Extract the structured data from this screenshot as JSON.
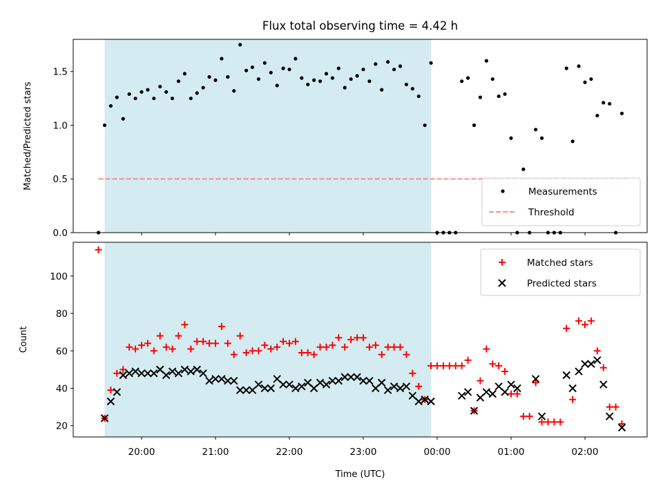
{
  "chart_data": [
    {
      "type": "scatter",
      "title": "Flux total observing time = 4.42 h",
      "ylabel": "Matched/Predicted stars",
      "xlabel": "",
      "ylim": [
        0,
        1.8
      ],
      "yticks": [
        "0.0",
        "0.5",
        "1.0",
        "1.5"
      ],
      "legend": {
        "placement": "lower-right",
        "entries": [
          "Measurements",
          "Threshold"
        ]
      },
      "threshold": {
        "name": "Threshold",
        "value": 0.5,
        "x_range": [
          "19:25",
          "02:35"
        ],
        "color": "#ff7f7f",
        "style": "dashed"
      },
      "observing_window": {
        "start": "19:30",
        "end": "23:55",
        "color": "#d4ebf1"
      },
      "series": [
        {
          "name": "Measurements",
          "marker": "dot",
          "color": "#000000",
          "points": [
            [
              "19:25",
              0.0
            ],
            [
              "19:30",
              1.0
            ],
            [
              "19:35",
              1.18
            ],
            [
              "19:40",
              1.26
            ],
            [
              "19:45",
              1.06
            ],
            [
              "19:50",
              1.29
            ],
            [
              "19:55",
              1.25
            ],
            [
              "20:00",
              1.31
            ],
            [
              "20:05",
              1.33
            ],
            [
              "20:10",
              1.25
            ],
            [
              "20:15",
              1.36
            ],
            [
              "20:20",
              1.31
            ],
            [
              "20:25",
              1.25
            ],
            [
              "20:30",
              1.41
            ],
            [
              "20:35",
              1.48
            ],
            [
              "20:40",
              1.25
            ],
            [
              "20:45",
              1.3
            ],
            [
              "20:50",
              1.35
            ],
            [
              "20:55",
              1.45
            ],
            [
              "21:00",
              1.42
            ],
            [
              "21:05",
              1.62
            ],
            [
              "21:10",
              1.45
            ],
            [
              "21:15",
              1.32
            ],
            [
              "21:20",
              1.75
            ],
            [
              "21:25",
              1.51
            ],
            [
              "21:30",
              1.54
            ],
            [
              "21:35",
              1.43
            ],
            [
              "21:40",
              1.58
            ],
            [
              "21:45",
              1.49
            ],
            [
              "21:50",
              1.37
            ],
            [
              "21:55",
              1.53
            ],
            [
              "22:00",
              1.52
            ],
            [
              "22:05",
              1.62
            ],
            [
              "22:10",
              1.44
            ],
            [
              "22:15",
              1.38
            ],
            [
              "22:20",
              1.42
            ],
            [
              "22:25",
              1.41
            ],
            [
              "22:30",
              1.48
            ],
            [
              "22:35",
              1.44
            ],
            [
              "22:40",
              1.53
            ],
            [
              "22:45",
              1.35
            ],
            [
              "22:50",
              1.43
            ],
            [
              "22:55",
              1.46
            ],
            [
              "23:00",
              1.52
            ],
            [
              "23:05",
              1.41
            ],
            [
              "23:10",
              1.57
            ],
            [
              "23:15",
              1.33
            ],
            [
              "23:20",
              1.59
            ],
            [
              "23:25",
              1.52
            ],
            [
              "23:30",
              1.55
            ],
            [
              "23:35",
              1.38
            ],
            [
              "23:40",
              1.34
            ],
            [
              "23:45",
              1.27
            ],
            [
              "23:50",
              1.0
            ],
            [
              "23:55",
              1.58
            ],
            [
              "00:00",
              0.0
            ],
            [
              "00:05",
              0.0
            ],
            [
              "00:10",
              0.0
            ],
            [
              "00:15",
              0.0
            ],
            [
              "00:20",
              1.41
            ],
            [
              "00:25",
              1.44
            ],
            [
              "00:30",
              1.0
            ],
            [
              "00:35",
              1.26
            ],
            [
              "00:40",
              1.6
            ],
            [
              "00:45",
              1.43
            ],
            [
              "00:50",
              1.27
            ],
            [
              "00:55",
              1.29
            ],
            [
              "01:00",
              0.88
            ],
            [
              "01:05",
              0.0
            ],
            [
              "01:10",
              0.59
            ],
            [
              "01:15",
              0.0
            ],
            [
              "01:20",
              0.96
            ],
            [
              "01:25",
              0.88
            ],
            [
              "01:30",
              0.0
            ],
            [
              "01:35",
              0.0
            ],
            [
              "01:40",
              0.0
            ],
            [
              "01:45",
              1.53
            ],
            [
              "01:50",
              0.85
            ],
            [
              "01:55",
              1.55
            ],
            [
              "02:00",
              1.4
            ],
            [
              "02:05",
              1.43
            ],
            [
              "02:10",
              1.09
            ],
            [
              "02:15",
              1.21
            ],
            [
              "02:20",
              1.2
            ],
            [
              "02:25",
              0.0
            ],
            [
              "02:30",
              1.11
            ]
          ]
        }
      ]
    },
    {
      "type": "scatter",
      "title": "",
      "ylabel": "Count",
      "xlabel": "Time (UTC)",
      "ylim": [
        14,
        118
      ],
      "yticks": [
        "20",
        "40",
        "60",
        "80",
        "100"
      ],
      "xticks": [
        "20:00",
        "21:00",
        "22:00",
        "23:00",
        "00:00",
        "01:00",
        "02:00"
      ],
      "legend": {
        "placement": "top-right",
        "entries": [
          "Matched stars",
          "Predicted stars"
        ]
      },
      "observing_window": {
        "start": "19:30",
        "end": "23:55",
        "color": "#d4ebf1"
      },
      "series": [
        {
          "name": "Matched stars",
          "marker": "plus",
          "color": "#ff0000",
          "points": [
            [
              "19:25",
              114
            ],
            [
              "19:30",
              24
            ],
            [
              "19:35",
              39
            ],
            [
              "19:40",
              48
            ],
            [
              "19:45",
              50
            ],
            [
              "19:50",
              62
            ],
            [
              "19:55",
              61
            ],
            [
              "20:00",
              63
            ],
            [
              "20:05",
              64
            ],
            [
              "20:10",
              60
            ],
            [
              "20:15",
              68
            ],
            [
              "20:20",
              62
            ],
            [
              "20:25",
              61
            ],
            [
              "20:30",
              68
            ],
            [
              "20:35",
              74
            ],
            [
              "20:40",
              61
            ],
            [
              "20:45",
              65
            ],
            [
              "20:50",
              65
            ],
            [
              "20:55",
              64
            ],
            [
              "21:00",
              64
            ],
            [
              "21:05",
              73
            ],
            [
              "21:10",
              64
            ],
            [
              "21:15",
              58
            ],
            [
              "21:20",
              68
            ],
            [
              "21:25",
              59
            ],
            [
              "21:30",
              60
            ],
            [
              "21:35",
              60
            ],
            [
              "21:40",
              63
            ],
            [
              "21:45",
              61
            ],
            [
              "21:50",
              62
            ],
            [
              "21:55",
              65
            ],
            [
              "22:00",
              64
            ],
            [
              "22:05",
              65
            ],
            [
              "22:10",
              59
            ],
            [
              "22:15",
              59
            ],
            [
              "22:20",
              58
            ],
            [
              "22:25",
              62
            ],
            [
              "22:30",
              62
            ],
            [
              "22:35",
              63
            ],
            [
              "22:40",
              67
            ],
            [
              "22:45",
              62
            ],
            [
              "22:50",
              66
            ],
            [
              "22:55",
              67
            ],
            [
              "23:00",
              67
            ],
            [
              "23:05",
              62
            ],
            [
              "23:10",
              63
            ],
            [
              "23:15",
              58
            ],
            [
              "23:20",
              62
            ],
            [
              "23:25",
              62
            ],
            [
              "23:30",
              62
            ],
            [
              "23:35",
              58
            ],
            [
              "23:40",
              48
            ],
            [
              "23:45",
              41
            ],
            [
              "23:50",
              34
            ],
            [
              "23:55",
              52
            ],
            [
              "00:00",
              52
            ],
            [
              "00:05",
              52
            ],
            [
              "00:10",
              52
            ],
            [
              "00:15",
              52
            ],
            [
              "00:20",
              52
            ],
            [
              "00:25",
              55
            ],
            [
              "00:30",
              28
            ],
            [
              "00:35",
              44
            ],
            [
              "00:40",
              61
            ],
            [
              "00:45",
              53
            ],
            [
              "00:50",
              52
            ],
            [
              "00:55",
              49
            ],
            [
              "01:00",
              37
            ],
            [
              "01:05",
              37
            ],
            [
              "01:10",
              25
            ],
            [
              "01:15",
              25
            ],
            [
              "01:20",
              43
            ],
            [
              "01:25",
              22
            ],
            [
              "01:30",
              22
            ],
            [
              "01:35",
              22
            ],
            [
              "01:40",
              22
            ],
            [
              "01:45",
              72
            ],
            [
              "01:50",
              34
            ],
            [
              "01:55",
              76
            ],
            [
              "02:00",
              74
            ],
            [
              "02:05",
              76
            ],
            [
              "02:10",
              60
            ],
            [
              "02:15",
              51
            ],
            [
              "02:20",
              30
            ],
            [
              "02:25",
              30
            ],
            [
              "02:30",
              21
            ]
          ]
        },
        {
          "name": "Predicted stars",
          "marker": "x",
          "color": "#000000",
          "points": [
            [
              "19:30",
              24
            ],
            [
              "19:35",
              33
            ],
            [
              "19:40",
              38
            ],
            [
              "19:45",
              47
            ],
            [
              "19:50",
              48
            ],
            [
              "19:55",
              49
            ],
            [
              "20:00",
              48
            ],
            [
              "20:05",
              48
            ],
            [
              "20:10",
              48
            ],
            [
              "20:15",
              50
            ],
            [
              "20:20",
              47
            ],
            [
              "20:25",
              49
            ],
            [
              "20:30",
              48
            ],
            [
              "20:35",
              50
            ],
            [
              "20:40",
              49
            ],
            [
              "20:45",
              50
            ],
            [
              "20:50",
              48
            ],
            [
              "20:55",
              44
            ],
            [
              "21:00",
              45
            ],
            [
              "21:05",
              45
            ],
            [
              "21:10",
              44
            ],
            [
              "21:15",
              44
            ],
            [
              "21:20",
              39
            ],
            [
              "21:25",
              39
            ],
            [
              "21:30",
              39
            ],
            [
              "21:35",
              42
            ],
            [
              "21:40",
              40
            ],
            [
              "21:45",
              40
            ],
            [
              "21:50",
              45
            ],
            [
              "21:55",
              42
            ],
            [
              "22:00",
              42
            ],
            [
              "22:05",
              40
            ],
            [
              "22:10",
              41
            ],
            [
              "22:15",
              43
            ],
            [
              "22:20",
              40
            ],
            [
              "22:25",
              43
            ],
            [
              "22:30",
              42
            ],
            [
              "22:35",
              44
            ],
            [
              "22:40",
              44
            ],
            [
              "22:45",
              46
            ],
            [
              "22:50",
              46
            ],
            [
              "22:55",
              46
            ],
            [
              "23:00",
              44
            ],
            [
              "23:05",
              44
            ],
            [
              "23:10",
              40
            ],
            [
              "23:15",
              43
            ],
            [
              "23:20",
              39
            ],
            [
              "23:25",
              41
            ],
            [
              "23:30",
              40
            ],
            [
              "23:35",
              41
            ],
            [
              "23:40",
              36
            ],
            [
              "23:45",
              33
            ],
            [
              "23:50",
              34
            ],
            [
              "23:55",
              33
            ],
            [
              "00:20",
              36
            ],
            [
              "00:25",
              38
            ],
            [
              "00:30",
              28
            ],
            [
              "00:35",
              35
            ],
            [
              "00:40",
              38
            ],
            [
              "00:45",
              37
            ],
            [
              "00:50",
              41
            ],
            [
              "00:55",
              38
            ],
            [
              "01:00",
              42
            ],
            [
              "01:05",
              40
            ],
            [
              "01:20",
              45
            ],
            [
              "01:25",
              25
            ],
            [
              "01:45",
              47
            ],
            [
              "01:50",
              40
            ],
            [
              "01:55",
              49
            ],
            [
              "02:00",
              53
            ],
            [
              "02:05",
              53
            ],
            [
              "02:10",
              55
            ],
            [
              "02:15",
              42
            ],
            [
              "02:20",
              25
            ],
            [
              "02:30",
              19
            ]
          ]
        }
      ]
    }
  ]
}
